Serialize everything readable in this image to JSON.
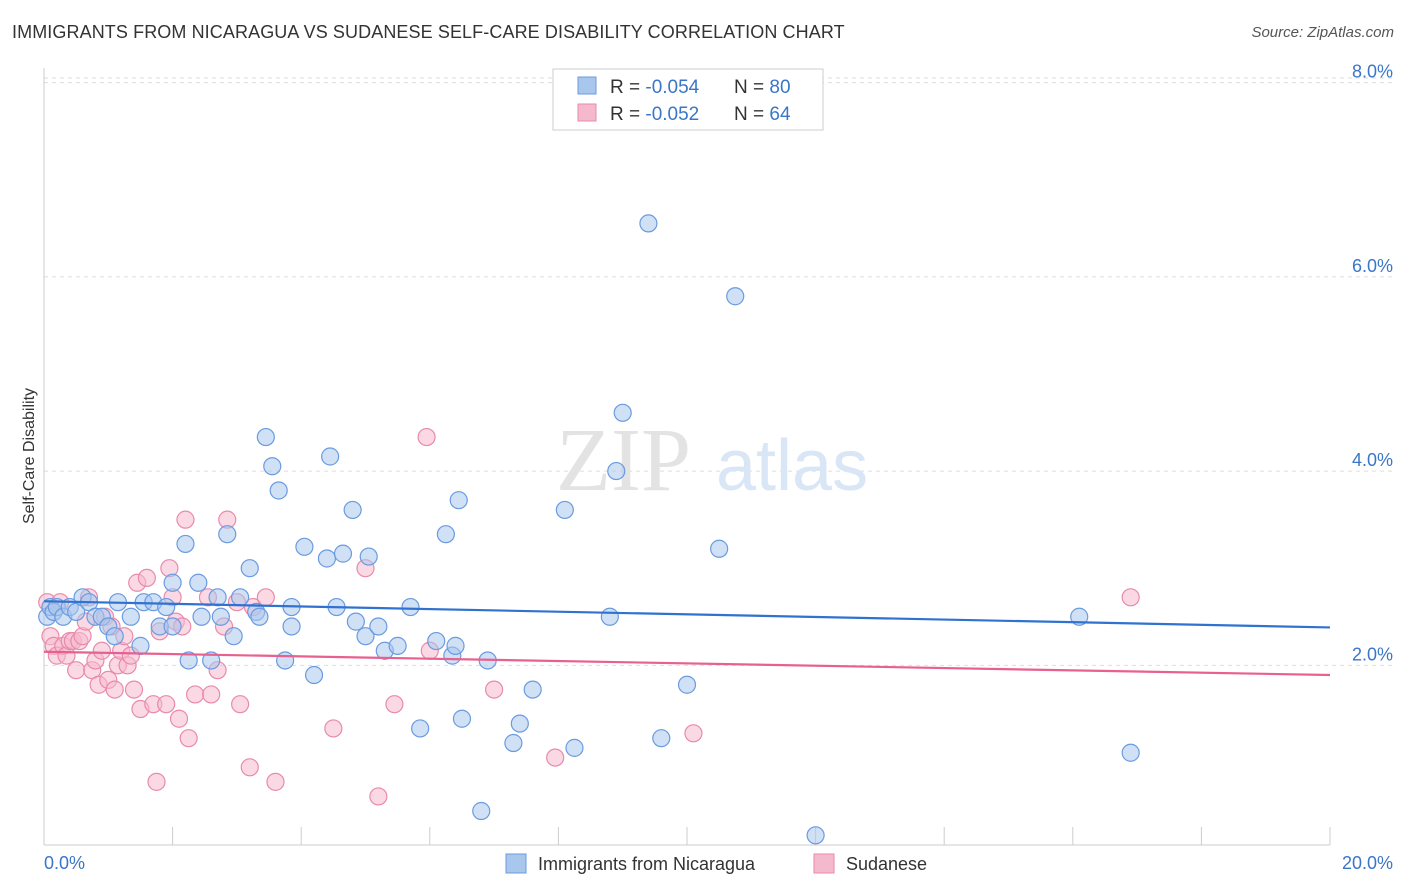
{
  "title": "IMMIGRANTS FROM NICARAGUA VS SUDANESE SELF-CARE DISABILITY CORRELATION CHART",
  "source": "Source: ZipAtlas.com",
  "watermark": {
    "zip": "ZIP",
    "atlas": "atlas"
  },
  "colors": {
    "blue_fill": "#a9c6ec",
    "blue_stroke": "#6a9be0",
    "blue_line": "#2f72d0",
    "pink_fill": "#f5b9cd",
    "pink_stroke": "#e98aab",
    "pink_line": "#e8608f",
    "axis_label": "#3a76c8",
    "grid": "#dddddd"
  },
  "legend_top": {
    "rows": [
      {
        "r_label": "R = ",
        "r_value": "-0.054",
        "n_label": "N = ",
        "n_value": "80"
      },
      {
        "r_label": "R = ",
        "r_value": "-0.052",
        "n_label": "N = ",
        "n_value": "64"
      }
    ]
  },
  "legend_bottom": [
    "Immigrants from Nicaragua",
    "Sudanese"
  ],
  "chart_data": {
    "type": "scatter",
    "title": "IMMIGRANTS FROM NICARAGUA VS SUDANESE SELF-CARE DISABILITY CORRELATION CHART",
    "xlabel": "",
    "ylabel": "Self-Care Disability",
    "xlim": [
      0,
      20
    ],
    "ylim": [
      0.15,
      8.15
    ],
    "x_tick_labels": [
      "0.0%",
      "20.0%"
    ],
    "y_ticks": [
      2,
      4,
      6,
      8
    ],
    "y_tick_labels": [
      "2.0%",
      "4.0%",
      "6.0%",
      "8.0%"
    ],
    "grid": true,
    "legend_placement": "top-center",
    "series": [
      {
        "name": "Immigrants from Nicaragua",
        "color": "#6a9be0",
        "trend": [
          [
            0,
            2.66
          ],
          [
            20,
            2.39
          ]
        ],
        "points": [
          [
            0.05,
            2.5
          ],
          [
            0.1,
            2.6
          ],
          [
            0.15,
            2.55
          ],
          [
            0.2,
            2.6
          ],
          [
            0.3,
            2.5
          ],
          [
            0.4,
            2.6
          ],
          [
            0.5,
            2.55
          ],
          [
            0.6,
            2.7
          ],
          [
            0.7,
            2.65
          ],
          [
            0.8,
            2.5
          ],
          [
            0.9,
            2.5
          ],
          [
            1.0,
            2.4
          ],
          [
            1.1,
            2.3
          ],
          [
            1.15,
            2.65
          ],
          [
            1.35,
            2.5
          ],
          [
            1.5,
            2.2
          ],
          [
            1.55,
            2.65
          ],
          [
            1.7,
            2.65
          ],
          [
            1.8,
            2.4
          ],
          [
            1.9,
            2.6
          ],
          [
            2.0,
            2.4
          ],
          [
            2.0,
            2.85
          ],
          [
            2.2,
            3.25
          ],
          [
            2.25,
            2.05
          ],
          [
            2.4,
            2.85
          ],
          [
            2.45,
            2.5
          ],
          [
            2.6,
            2.05
          ],
          [
            2.7,
            2.7
          ],
          [
            2.75,
            2.5
          ],
          [
            2.85,
            3.35
          ],
          [
            2.95,
            2.3
          ],
          [
            3.05,
            2.7
          ],
          [
            3.2,
            3.0
          ],
          [
            3.3,
            2.55
          ],
          [
            3.35,
            2.5
          ],
          [
            3.45,
            4.35
          ],
          [
            3.55,
            4.05
          ],
          [
            3.65,
            3.8
          ],
          [
            3.75,
            2.05
          ],
          [
            3.85,
            2.6
          ],
          [
            3.85,
            2.4
          ],
          [
            4.05,
            3.22
          ],
          [
            4.2,
            1.9
          ],
          [
            4.4,
            3.1
          ],
          [
            4.45,
            4.15
          ],
          [
            4.55,
            2.6
          ],
          [
            4.65,
            3.15
          ],
          [
            4.8,
            3.6
          ],
          [
            4.85,
            2.45
          ],
          [
            5.0,
            2.3
          ],
          [
            5.05,
            3.12
          ],
          [
            5.2,
            2.4
          ],
          [
            5.3,
            2.15
          ],
          [
            5.5,
            2.2
          ],
          [
            5.7,
            2.6
          ],
          [
            5.85,
            1.35
          ],
          [
            6.1,
            2.25
          ],
          [
            6.25,
            3.35
          ],
          [
            6.35,
            2.1
          ],
          [
            6.4,
            2.2
          ],
          [
            6.45,
            3.7
          ],
          [
            6.5,
            1.45
          ],
          [
            6.8,
            0.5
          ],
          [
            6.9,
            2.05
          ],
          [
            7.3,
            1.2
          ],
          [
            7.4,
            1.4
          ],
          [
            7.6,
            1.75
          ],
          [
            8.1,
            3.6
          ],
          [
            8.25,
            1.15
          ],
          [
            8.8,
            2.5
          ],
          [
            8.9,
            4.0
          ],
          [
            9.0,
            4.6
          ],
          [
            9.4,
            6.55
          ],
          [
            9.6,
            1.25
          ],
          [
            10.0,
            1.8
          ],
          [
            10.5,
            3.2
          ],
          [
            10.75,
            5.8
          ],
          [
            12.0,
            0.25
          ],
          [
            16.1,
            2.5
          ],
          [
            16.9,
            1.1
          ]
        ]
      },
      {
        "name": "Sudanese",
        "color": "#e98aab",
        "trend": [
          [
            0,
            2.14
          ],
          [
            20,
            1.9
          ]
        ],
        "points": [
          [
            0.05,
            2.65
          ],
          [
            0.1,
            2.3
          ],
          [
            0.15,
            2.2
          ],
          [
            0.2,
            2.1
          ],
          [
            0.3,
            2.2
          ],
          [
            0.35,
            2.1
          ],
          [
            0.4,
            2.25
          ],
          [
            0.45,
            2.25
          ],
          [
            0.5,
            1.95
          ],
          [
            0.55,
            2.25
          ],
          [
            0.6,
            2.3
          ],
          [
            0.65,
            2.45
          ],
          [
            0.7,
            2.7
          ],
          [
            0.75,
            1.95
          ],
          [
            0.8,
            2.05
          ],
          [
            0.85,
            1.8
          ],
          [
            0.9,
            2.15
          ],
          [
            0.95,
            2.5
          ],
          [
            1.0,
            1.85
          ],
          [
            1.05,
            2.4
          ],
          [
            1.1,
            1.75
          ],
          [
            1.15,
            2.0
          ],
          [
            1.2,
            2.15
          ],
          [
            1.25,
            2.3
          ],
          [
            1.3,
            2.0
          ],
          [
            1.35,
            2.1
          ],
          [
            1.4,
            1.75
          ],
          [
            1.45,
            2.85
          ],
          [
            1.5,
            1.55
          ],
          [
            1.6,
            2.9
          ],
          [
            1.7,
            1.6
          ],
          [
            1.75,
            0.8
          ],
          [
            1.8,
            2.35
          ],
          [
            1.9,
            1.6
          ],
          [
            1.95,
            3.0
          ],
          [
            2.0,
            2.7
          ],
          [
            2.05,
            2.45
          ],
          [
            2.1,
            1.45
          ],
          [
            2.15,
            2.4
          ],
          [
            2.2,
            3.5
          ],
          [
            2.25,
            1.25
          ],
          [
            2.35,
            1.7
          ],
          [
            2.55,
            2.7
          ],
          [
            2.6,
            1.7
          ],
          [
            2.7,
            1.95
          ],
          [
            2.8,
            2.4
          ],
          [
            2.85,
            3.5
          ],
          [
            3.0,
            2.65
          ],
          [
            3.05,
            1.6
          ],
          [
            3.2,
            0.95
          ],
          [
            3.25,
            2.6
          ],
          [
            3.45,
            2.7
          ],
          [
            3.6,
            0.8
          ],
          [
            4.5,
            1.35
          ],
          [
            5.0,
            3.0
          ],
          [
            5.2,
            0.65
          ],
          [
            5.45,
            1.6
          ],
          [
            5.95,
            4.35
          ],
          [
            6.0,
            2.15
          ],
          [
            7.0,
            1.75
          ],
          [
            7.95,
            1.05
          ],
          [
            10.1,
            1.3
          ],
          [
            16.9,
            2.7
          ],
          [
            0.25,
            2.65
          ]
        ]
      }
    ]
  }
}
